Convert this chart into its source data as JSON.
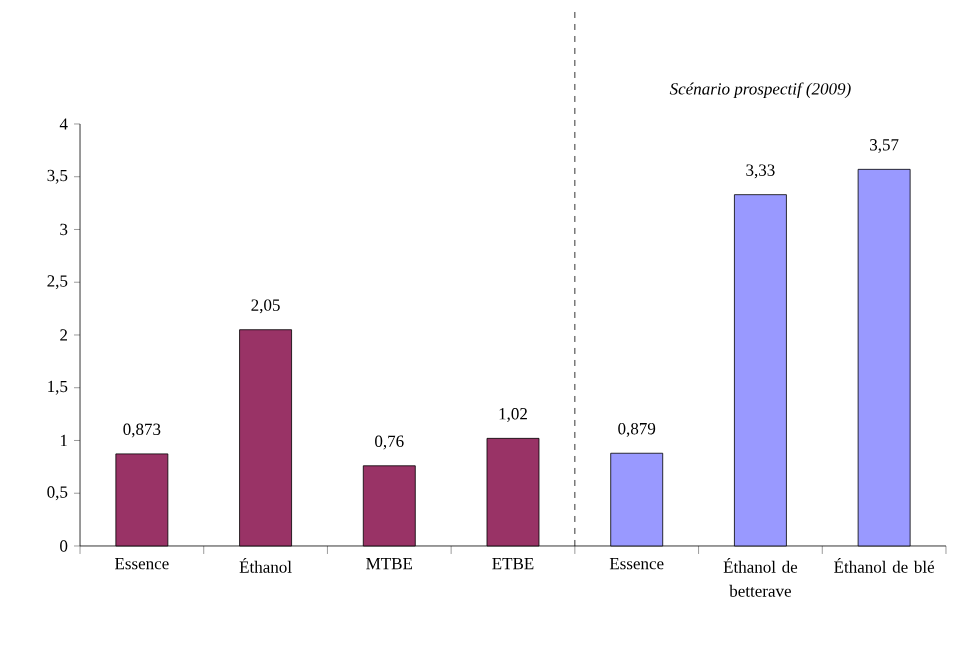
{
  "chart_data": {
    "type": "bar",
    "categories": [
      "Essence",
      "Éthanol",
      "MTBE",
      "ETBE",
      "Essence",
      "Éthanol de betterave",
      "Éthanol de blé"
    ],
    "values": [
      0.873,
      2.05,
      0.76,
      1.02,
      0.879,
      3.33,
      3.57
    ],
    "colors": [
      "#993366",
      "#993366",
      "#993366",
      "#993366",
      "#9999ff",
      "#9999ff",
      "#9999ff"
    ],
    "value_labels": [
      "0,873",
      "2,05",
      "0,76",
      "1,02",
      "0,879",
      "3,33",
      "3,57"
    ],
    "ylim": [
      0,
      4
    ],
    "yticks": [
      0,
      {
        "value": 0.5,
        "label": "0,5"
      },
      1,
      {
        "value": 1.5,
        "label": "1,5"
      },
      2,
      {
        "value": 2.5,
        "label": "2,5"
      },
      3,
      {
        "value": 3.5,
        "label": "3,5"
      },
      4
    ],
    "annotations": [
      "Scénario prospectif (2009)"
    ],
    "grid": false
  }
}
